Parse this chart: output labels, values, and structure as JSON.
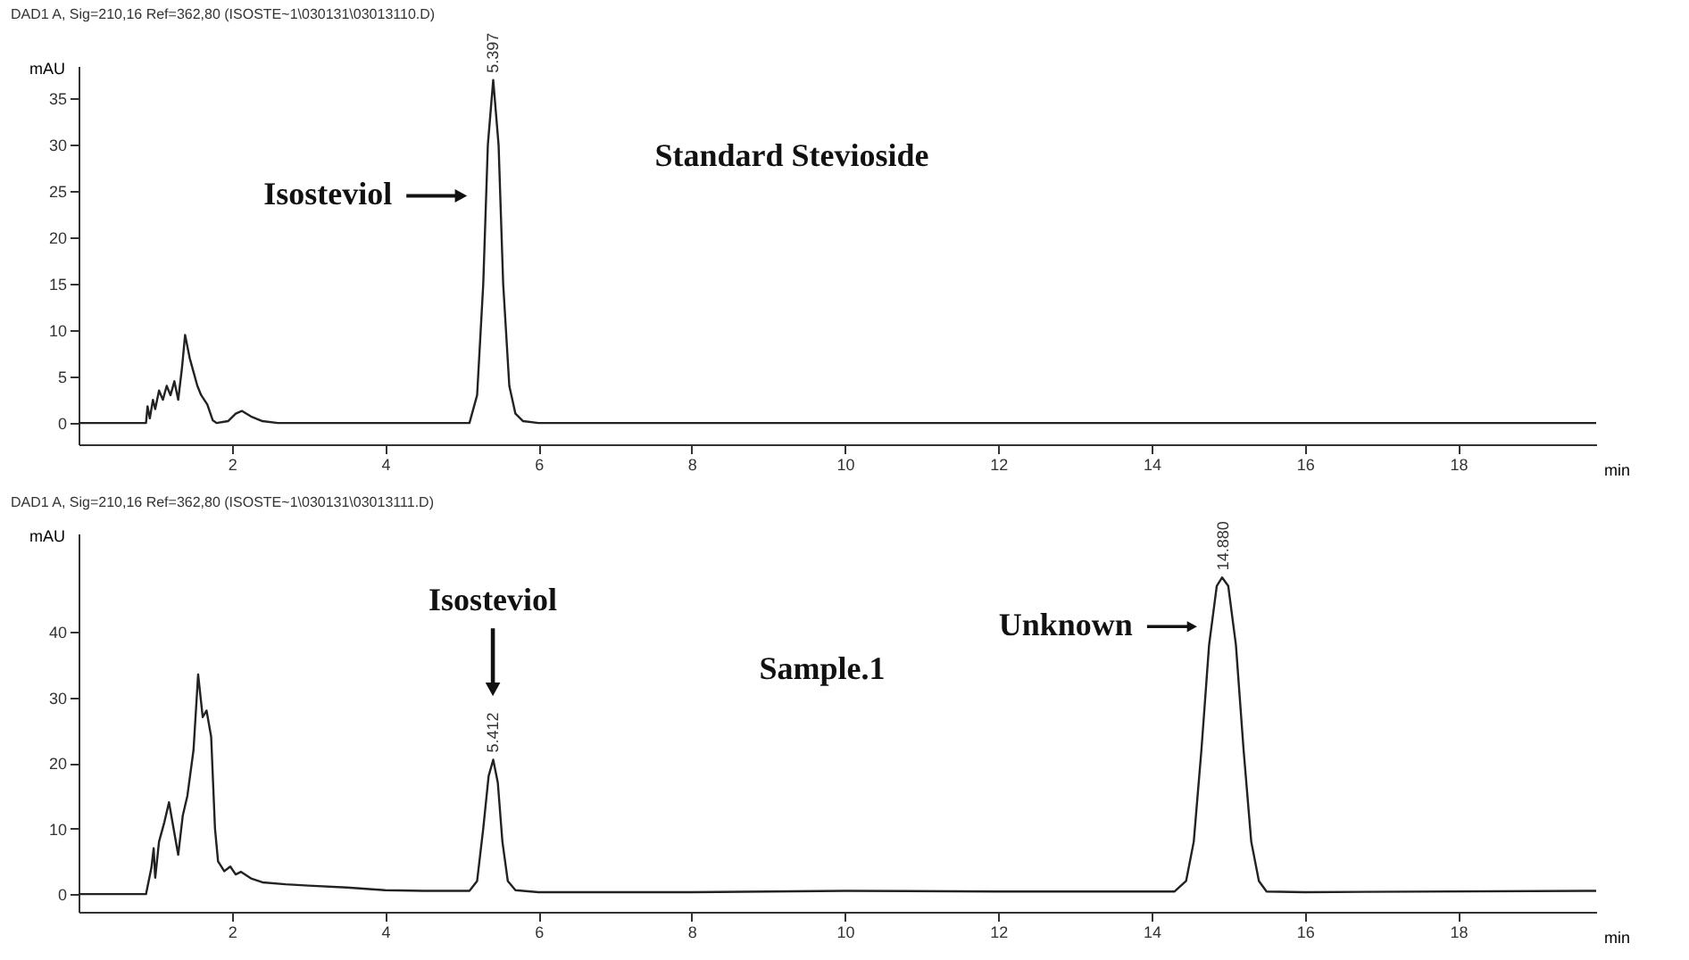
{
  "chart_data": [
    {
      "type": "line",
      "title": "DAD1 A, Sig=210,16 Ref=362,80 (ISOSTE~1\\030131\\03013110.D)",
      "xlabel": "min",
      "ylabel": "mAU",
      "xlim": [
        0,
        19.8
      ],
      "ylim": [
        -2.3,
        38.5
      ],
      "xticks": [
        2,
        4,
        6,
        8,
        10,
        12,
        14,
        16,
        18
      ],
      "yticks": [
        0,
        5,
        10,
        15,
        20,
        25,
        30,
        35
      ],
      "grid": false,
      "series": [
        {
          "color": "#222222",
          "x": [
            0,
            0.88,
            0.9,
            0.93,
            0.97,
            1.0,
            1.05,
            1.1,
            1.15,
            1.2,
            1.25,
            1.3,
            1.35,
            1.39,
            1.45,
            1.5,
            1.55,
            1.6,
            1.68,
            1.75,
            1.8,
            1.95,
            2.05,
            2.13,
            2.25,
            2.4,
            2.6,
            5.1,
            5.2,
            5.28,
            5.34,
            5.41,
            5.48,
            5.54,
            5.62,
            5.7,
            5.8,
            6.0,
            19.8
          ],
          "values": [
            0,
            0,
            1.8,
            0.5,
            2.5,
            1.5,
            3.5,
            2.5,
            4,
            3,
            4.5,
            2.5,
            6,
            9.5,
            7,
            5.5,
            4,
            3,
            2,
            0.3,
            0,
            0.2,
            1,
            1.3,
            0.7,
            0.2,
            0,
            0,
            3,
            15,
            30,
            37,
            30,
            15,
            4,
            1,
            0.2,
            0,
            0
          ]
        }
      ],
      "annotations": [
        "Standard Stevioside",
        "Isosteviol",
        "5.397"
      ]
    },
    {
      "type": "line",
      "title": "DAD1 A, Sig=210,16 Ref=362,80 (ISOSTE~1\\030131\\03013111.D)",
      "xlabel": "min",
      "ylabel": "mAU",
      "xlim": [
        0,
        19.8
      ],
      "ylim": [
        -2.7,
        55
      ],
      "xticks": [
        2,
        4,
        6,
        8,
        10,
        12,
        14,
        16,
        18
      ],
      "yticks": [
        0,
        10,
        20,
        30,
        40
      ],
      "grid": false,
      "series": [
        {
          "color": "#222222",
          "x": [
            0,
            0.88,
            0.95,
            0.98,
            1.0,
            1.05,
            1.12,
            1.18,
            1.24,
            1.3,
            1.36,
            1.42,
            1.5,
            1.56,
            1.62,
            1.67,
            1.73,
            1.78,
            1.82,
            1.9,
            1.98,
            2.05,
            2.12,
            2.25,
            2.4,
            2.7,
            3.0,
            3.5,
            4.0,
            4.5,
            5.1,
            5.2,
            5.28,
            5.35,
            5.41,
            5.47,
            5.53,
            5.6,
            5.7,
            6.0,
            8,
            10,
            12,
            14.3,
            14.45,
            14.55,
            14.65,
            14.75,
            14.85,
            14.92,
            15.0,
            15.1,
            15.2,
            15.3,
            15.4,
            15.5,
            16,
            19.8
          ],
          "values": [
            0,
            0,
            4,
            7,
            2.5,
            8,
            11,
            14,
            10,
            6,
            12,
            15,
            22,
            33.5,
            27,
            28,
            24,
            10,
            5,
            3.5,
            4.2,
            3,
            3.4,
            2.4,
            1.8,
            1.5,
            1.3,
            1,
            0.6,
            0.5,
            0.5,
            2,
            10,
            18,
            20.5,
            17,
            8,
            2,
            0.6,
            0.3,
            0.3,
            0.5,
            0.4,
            0.4,
            2,
            8,
            22,
            38,
            47,
            48.3,
            47,
            38,
            22,
            8,
            2,
            0.4,
            0.3,
            0.5
          ]
        }
      ],
      "annotations": [
        "Isosteviol",
        "5.412",
        "Sample.1",
        "Unknown",
        "14.880"
      ]
    }
  ]
}
